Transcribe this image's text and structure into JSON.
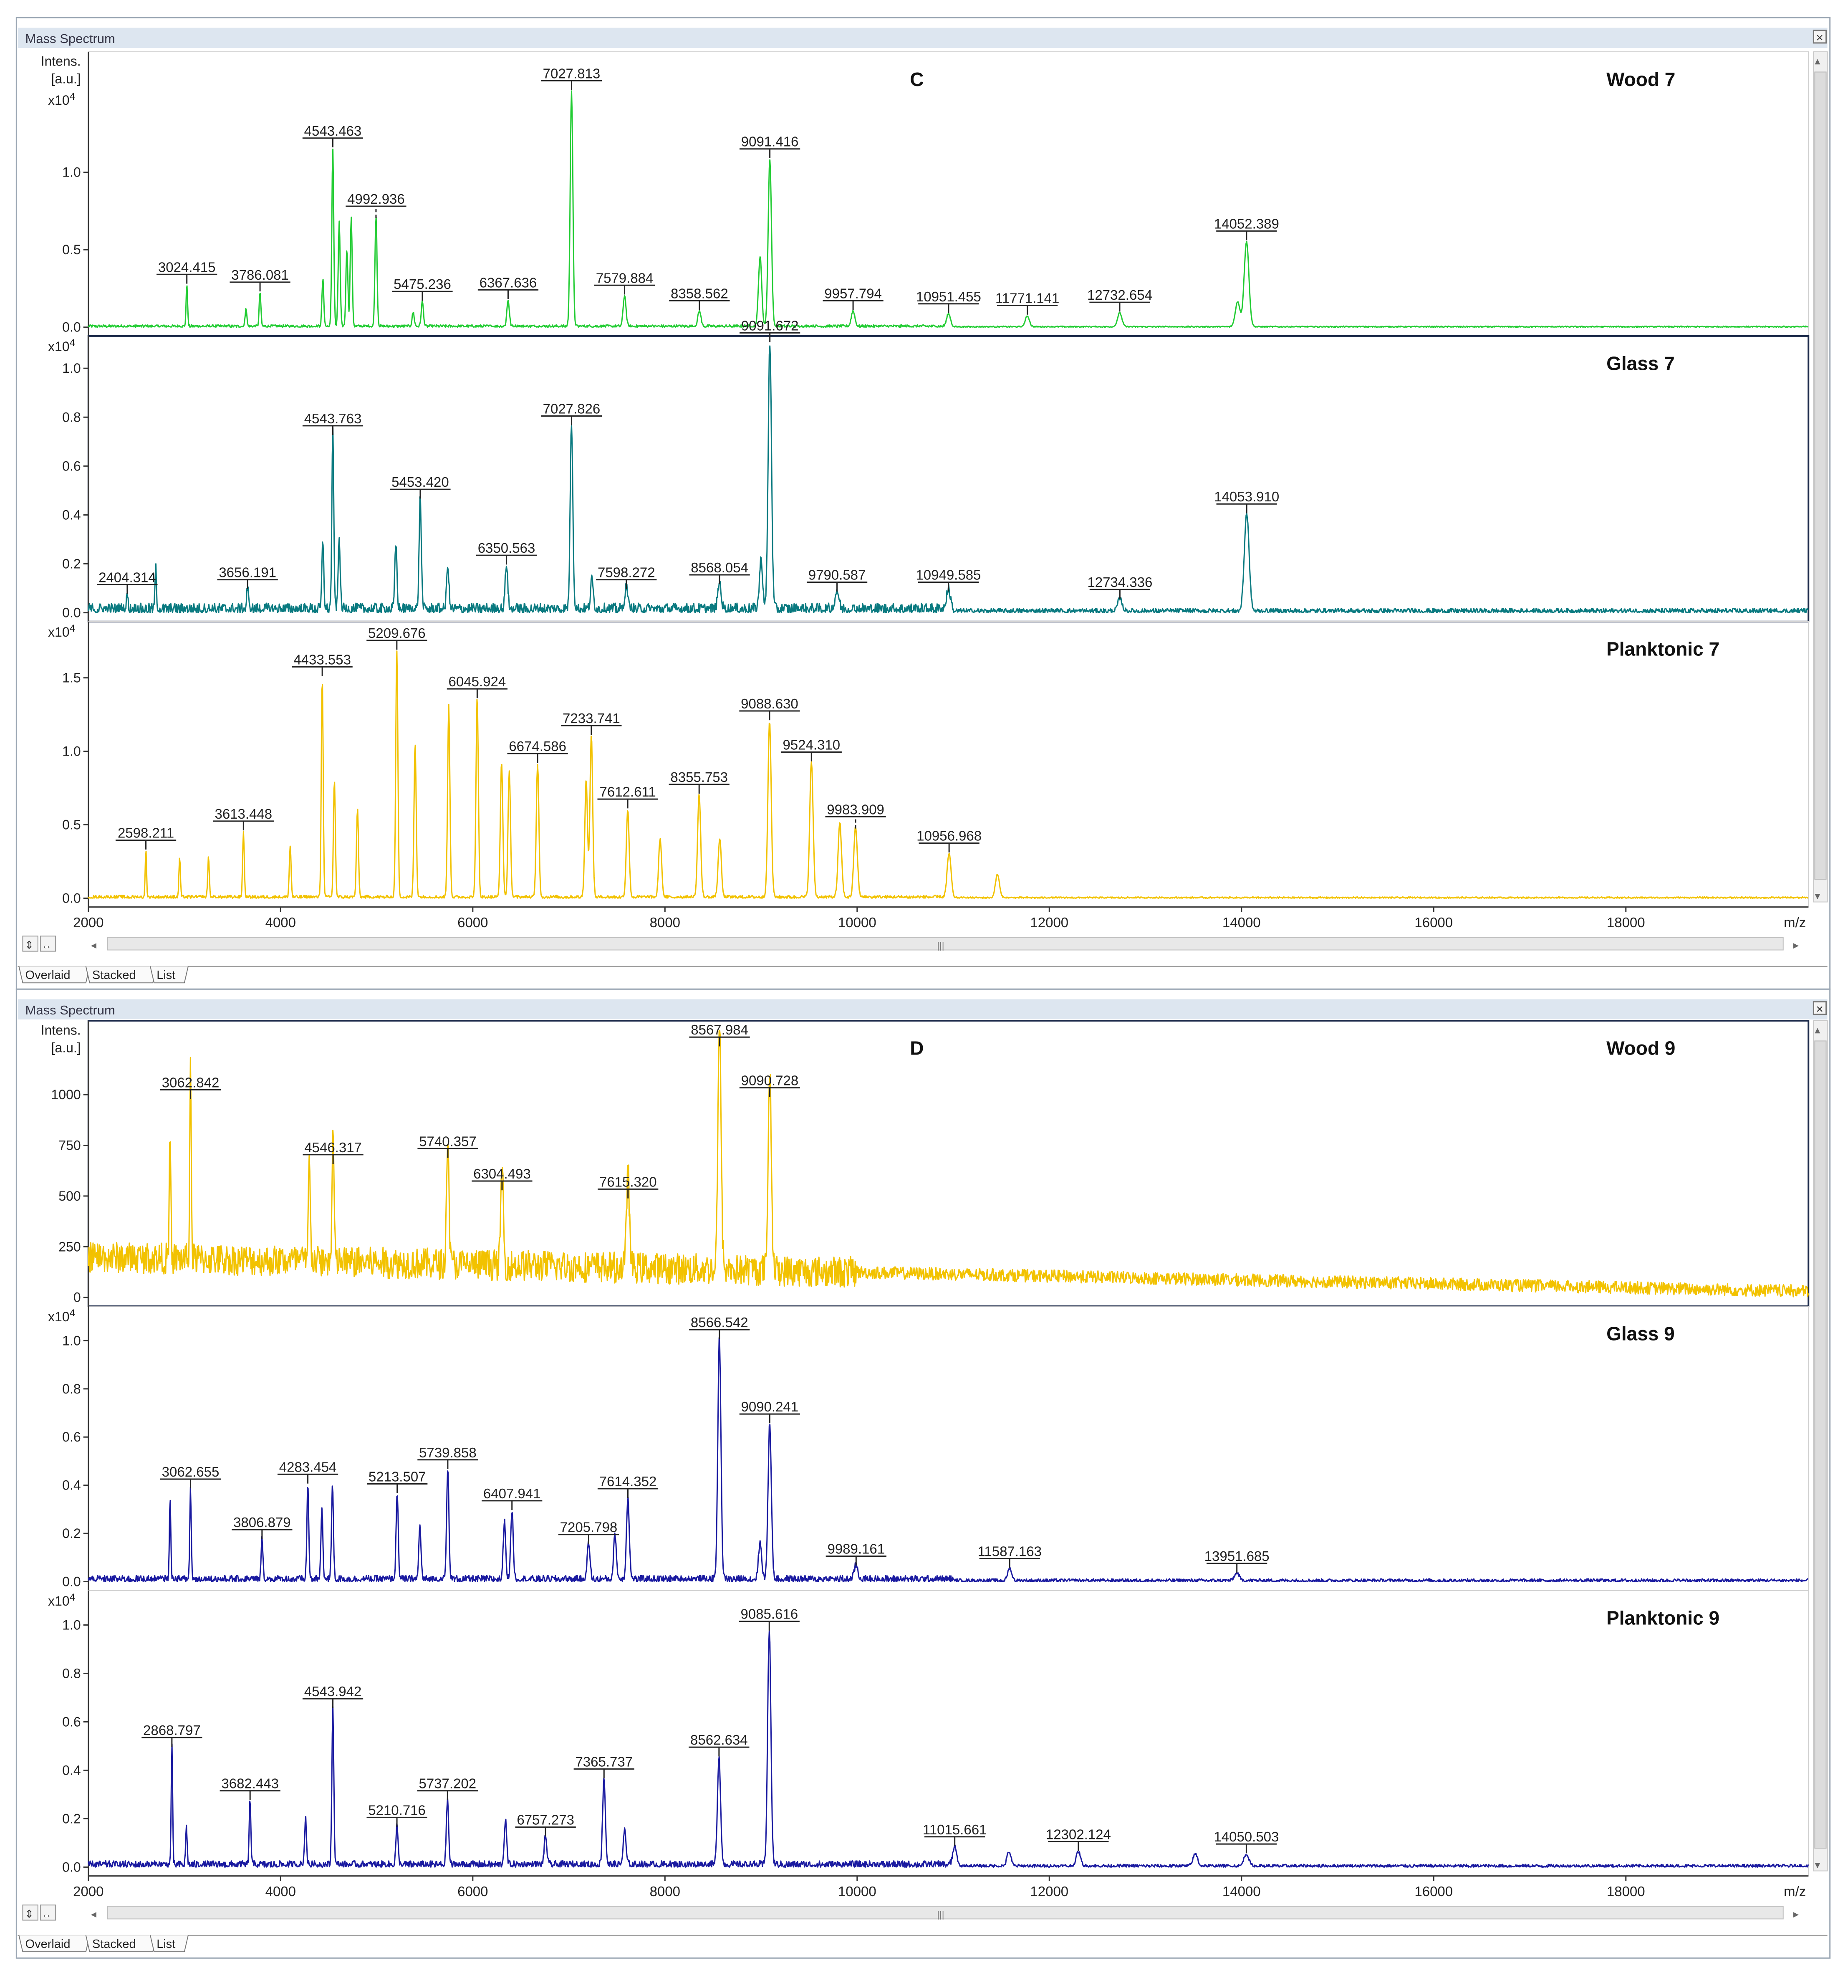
{
  "window_title": "Mass Spectrum",
  "tabs": [
    "Overlaid",
    "Stacked",
    "List"
  ],
  "axis": {
    "x_unit": "m/z",
    "y_unit_line1": "Intens.",
    "y_unit_line2": "[a.u.]",
    "multiplier_base": "x10",
    "multiplier_exp": "4"
  },
  "colors": {
    "green": "#22cc33",
    "teal": "#0a7a80",
    "yellow": "#f2c200",
    "blue": "#1a1aa0"
  },
  "chart_data": [
    {
      "type": "line",
      "panel_letter": "C",
      "x_ticks": [
        "2000",
        "4000",
        "6000",
        "8000",
        "10000",
        "12000",
        "14000",
        "16000",
        "18000"
      ],
      "xlim": [
        2000,
        19900
      ],
      "series": [
        {
          "name": "Wood 7",
          "color": "green",
          "multiplier": true,
          "ylim": [
            0,
            1.68
          ],
          "y_ticks": [
            {
              "v": 0,
              "t": "0.0"
            },
            {
              "v": 0.5,
              "t": "0.5"
            },
            {
              "v": 1.0,
              "t": "1.0"
            }
          ],
          "noise": 0.012,
          "peaks": [
            {
              "x": 3024.415,
              "y": 0.27,
              "label": "3024.415"
            },
            {
              "x": 3786.081,
              "y": 0.22,
              "label": "3786.081"
            },
            {
              "x": 4543.463,
              "y": 1.15,
              "label": "4543.463"
            },
            {
              "x": 4992.936,
              "y": 0.71,
              "label": "4992.936",
              "dashed": true
            },
            {
              "x": 5475.236,
              "y": 0.16,
              "label": "5475.236"
            },
            {
              "x": 6367.636,
              "y": 0.17,
              "label": "6367.636"
            },
            {
              "x": 7027.813,
              "y": 1.52,
              "label": "7027.813"
            },
            {
              "x": 7579.884,
              "y": 0.2,
              "label": "7579.884"
            },
            {
              "x": 8358.562,
              "y": 0.1,
              "label": "8358.562"
            },
            {
              "x": 9091.416,
              "y": 1.08,
              "label": "9091.416"
            },
            {
              "x": 9957.794,
              "y": 0.1,
              "label": "9957.794"
            },
            {
              "x": 10951.455,
              "y": 0.08,
              "label": "10951.455"
            },
            {
              "x": 11771.141,
              "y": 0.07,
              "label": "11771.141"
            },
            {
              "x": 12732.654,
              "y": 0.09,
              "label": "12732.654"
            },
            {
              "x": 14052.389,
              "y": 0.55,
              "label": "14052.389"
            }
          ],
          "extra_peaks": [
            [
              4440,
              0.3
            ],
            [
              4610,
              0.68
            ],
            [
              4690,
              0.5
            ],
            [
              4735,
              0.7
            ],
            [
              8990,
              0.45
            ],
            [
              13960,
              0.16
            ],
            [
              3640,
              0.12
            ],
            [
              5380,
              0.09
            ]
          ]
        },
        {
          "name": "Glass 7",
          "color": "teal",
          "multiplier": true,
          "ylim": [
            0,
            1.07
          ],
          "y_ticks": [
            {
              "v": 0,
              "t": "0.0"
            },
            {
              "v": 0.2,
              "t": "0.2"
            },
            {
              "v": 0.4,
              "t": "0.4"
            },
            {
              "v": 0.6,
              "t": "0.6"
            },
            {
              "v": 0.8,
              "t": "0.8"
            },
            {
              "v": 1.0,
              "t": "1.0"
            }
          ],
          "noise": 0.03,
          "peaks": [
            {
              "x": 2404.314,
              "y": 0.07,
              "label": "2404.314"
            },
            {
              "x": 3656.191,
              "y": 0.09,
              "label": "3656.191"
            },
            {
              "x": 4543.763,
              "y": 0.72,
              "label": "4543.763"
            },
            {
              "x": 5453.42,
              "y": 0.46,
              "label": "5453.420"
            },
            {
              "x": 6350.563,
              "y": 0.19,
              "label": "6350.563"
            },
            {
              "x": 7027.826,
              "y": 0.76,
              "label": "7027.826"
            },
            {
              "x": 7598.272,
              "y": 0.09,
              "label": "7598.272"
            },
            {
              "x": 8568.054,
              "y": 0.11,
              "label": "8568.054"
            },
            {
              "x": 9091.672,
              "y": 1.1,
              "label": "9091.672"
            },
            {
              "x": 9790.587,
              "y": 0.08,
              "label": "9790.587"
            },
            {
              "x": 10949.585,
              "y": 0.08,
              "label": "10949.585"
            },
            {
              "x": 12734.336,
              "y": 0.05,
              "label": "12734.336"
            },
            {
              "x": 14053.91,
              "y": 0.4,
              "label": "14053.910"
            }
          ],
          "extra_peaks": [
            [
              4440,
              0.28
            ],
            [
              4610,
              0.3
            ],
            [
              5200,
              0.27
            ],
            [
              5740,
              0.18
            ],
            [
              9000,
              0.2
            ],
            [
              7240,
              0.12
            ],
            [
              2700,
              0.17
            ]
          ]
        },
        {
          "name": "Planktonic 7",
          "color": "yellow",
          "multiplier": true,
          "ylim": [
            0,
            1.78
          ],
          "y_ticks": [
            {
              "v": 0,
              "t": "0.0"
            },
            {
              "v": 0.5,
              "t": "0.5"
            },
            {
              "v": 1.0,
              "t": "1.0"
            },
            {
              "v": 1.5,
              "t": "1.5"
            }
          ],
          "noise": 0.015,
          "peaks": [
            {
              "x": 2598.211,
              "y": 0.32,
              "label": "2598.211"
            },
            {
              "x": 3613.448,
              "y": 0.45,
              "label": "3613.448"
            },
            {
              "x": 4433.553,
              "y": 1.5,
              "label": "4433.553"
            },
            {
              "x": 5209.676,
              "y": 1.68,
              "label": "5209.676"
            },
            {
              "x": 6045.924,
              "y": 1.35,
              "label": "6045.924"
            },
            {
              "x": 6674.586,
              "y": 0.91,
              "label": "6674.586"
            },
            {
              "x": 7233.741,
              "y": 1.1,
              "label": "7233.741"
            },
            {
              "x": 7612.611,
              "y": 0.6,
              "label": "7612.611"
            },
            {
              "x": 8355.753,
              "y": 0.7,
              "label": "8355.753"
            },
            {
              "x": 9088.63,
              "y": 1.2,
              "label": "9088.630"
            },
            {
              "x": 9524.31,
              "y": 0.92,
              "label": "9524.310"
            },
            {
              "x": 9983.909,
              "y": 0.48,
              "label": "9983.909",
              "dashed": true
            },
            {
              "x": 10956.968,
              "y": 0.3,
              "label": "10956.968"
            }
          ],
          "extra_peaks": [
            [
              5400,
              1.05
            ],
            [
              5750,
              1.3
            ],
            [
              4800,
              0.6
            ],
            [
              4560,
              0.8
            ],
            [
              6300,
              0.92
            ],
            [
              6380,
              0.85
            ],
            [
              7180,
              0.8
            ],
            [
              7950,
              0.4
            ],
            [
              8570,
              0.4
            ],
            [
              9820,
              0.5
            ],
            [
              11460,
              0.16
            ],
            [
              4100,
              0.35
            ],
            [
              3250,
              0.28
            ],
            [
              2950,
              0.27
            ]
          ]
        }
      ]
    },
    {
      "type": "line",
      "panel_letter": "D",
      "x_ticks": [
        "2000",
        "4000",
        "6000",
        "8000",
        "10000",
        "12000",
        "14000",
        "16000",
        "18000"
      ],
      "xlim": [
        2000,
        19900
      ],
      "series": [
        {
          "name": "Wood 9",
          "color": "yellow",
          "multiplier": false,
          "ylim": [
            0,
            1290
          ],
          "y_ticks": [
            {
              "v": 0,
              "t": "0"
            },
            {
              "v": 250,
              "t": "250"
            },
            {
              "v": 500,
              "t": "500"
            },
            {
              "v": 750,
              "t": "750"
            },
            {
              "v": 1000,
              "t": "1000"
            }
          ],
          "noise": 70,
          "baseline": [
            200,
            30
          ],
          "peaks": [
            {
              "x": 3062.842,
              "y": 970,
              "label": "3062.842"
            },
            {
              "x": 4546.317,
              "y": 650,
              "label": "4546.317"
            },
            {
              "x": 5740.357,
              "y": 680,
              "label": "5740.357"
            },
            {
              "x": 6304.493,
              "y": 520,
              "label": "6304.493"
            },
            {
              "x": 7615.32,
              "y": 480,
              "label": "7615.320"
            },
            {
              "x": 8567.984,
              "y": 1230,
              "label": "8567.984"
            },
            {
              "x": 9090.728,
              "y": 980,
              "label": "9090.728"
            }
          ],
          "extra_peaks": [
            [
              2850,
              600
            ],
            [
              4300,
              550
            ]
          ]
        },
        {
          "name": "Glass 9",
          "color": "blue",
          "multiplier": true,
          "ylim": [
            0,
            1.08
          ],
          "y_ticks": [
            {
              "v": 0,
              "t": "0.0"
            },
            {
              "v": 0.2,
              "t": "0.2"
            },
            {
              "v": 0.4,
              "t": "0.4"
            },
            {
              "v": 0.6,
              "t": "0.6"
            },
            {
              "v": 0.8,
              "t": "0.8"
            },
            {
              "v": 1.0,
              "t": "1.0"
            }
          ],
          "noise": 0.02,
          "peaks": [
            {
              "x": 3062.655,
              "y": 0.38,
              "label": "3062.655"
            },
            {
              "x": 3806.879,
              "y": 0.17,
              "label": "3806.879"
            },
            {
              "x": 4283.454,
              "y": 0.4,
              "label": "4283.454"
            },
            {
              "x": 5213.507,
              "y": 0.36,
              "label": "5213.507"
            },
            {
              "x": 5739.858,
              "y": 0.46,
              "label": "5739.858"
            },
            {
              "x": 6407.941,
              "y": 0.29,
              "label": "6407.941"
            },
            {
              "x": 7205.798,
              "y": 0.15,
              "label": "7205.798"
            },
            {
              "x": 7614.352,
              "y": 0.34,
              "label": "7614.352"
            },
            {
              "x": 8566.542,
              "y": 1.0,
              "label": "8566.542"
            },
            {
              "x": 9090.241,
              "y": 0.65,
              "label": "9090.241"
            },
            {
              "x": 9989.161,
              "y": 0.06,
              "label": "9989.161"
            },
            {
              "x": 11587.163,
              "y": 0.05,
              "label": "11587.163"
            },
            {
              "x": 13951.685,
              "y": 0.03,
              "label": "13951.685"
            }
          ],
          "extra_peaks": [
            [
              2850,
              0.33
            ],
            [
              4540,
              0.4
            ],
            [
              4430,
              0.3
            ],
            [
              5450,
              0.22
            ],
            [
              6330,
              0.24
            ],
            [
              7480,
              0.18
            ],
            [
              8990,
              0.15
            ]
          ]
        },
        {
          "name": "Planktonic 9",
          "color": "blue",
          "multiplier": true,
          "ylim": [
            0,
            1.08
          ],
          "y_ticks": [
            {
              "v": 0,
              "t": "0.0"
            },
            {
              "v": 0.2,
              "t": "0.2"
            },
            {
              "v": 0.4,
              "t": "0.4"
            },
            {
              "v": 0.6,
              "t": "0.6"
            },
            {
              "v": 0.8,
              "t": "0.8"
            },
            {
              "v": 1.0,
              "t": "1.0"
            }
          ],
          "noise": 0.02,
          "peaks": [
            {
              "x": 2868.797,
              "y": 0.49,
              "label": "2868.797"
            },
            {
              "x": 3682.443,
              "y": 0.27,
              "label": "3682.443"
            },
            {
              "x": 4543.942,
              "y": 0.65,
              "label": "4543.942"
            },
            {
              "x": 5210.716,
              "y": 0.16,
              "label": "5210.716"
            },
            {
              "x": 5737.202,
              "y": 0.27,
              "label": "5737.202"
            },
            {
              "x": 6757.273,
              "y": 0.12,
              "label": "6757.273"
            },
            {
              "x": 7365.737,
              "y": 0.36,
              "label": "7365.737"
            },
            {
              "x": 8562.634,
              "y": 0.45,
              "label": "8562.634"
            },
            {
              "x": 9085.616,
              "y": 0.97,
              "label": "9085.616"
            },
            {
              "x": 11015.661,
              "y": 0.08,
              "label": "11015.661"
            },
            {
              "x": 12302.124,
              "y": 0.06,
              "label": "12302.124"
            },
            {
              "x": 14050.503,
              "y": 0.05,
              "label": "14050.503"
            }
          ],
          "extra_peaks": [
            [
              4260,
              0.2
            ],
            [
              6340,
              0.18
            ],
            [
              7580,
              0.14
            ],
            [
              3020,
              0.16
            ],
            [
              11580,
              0.06
            ],
            [
              13520,
              0.05
            ]
          ]
        }
      ]
    }
  ]
}
